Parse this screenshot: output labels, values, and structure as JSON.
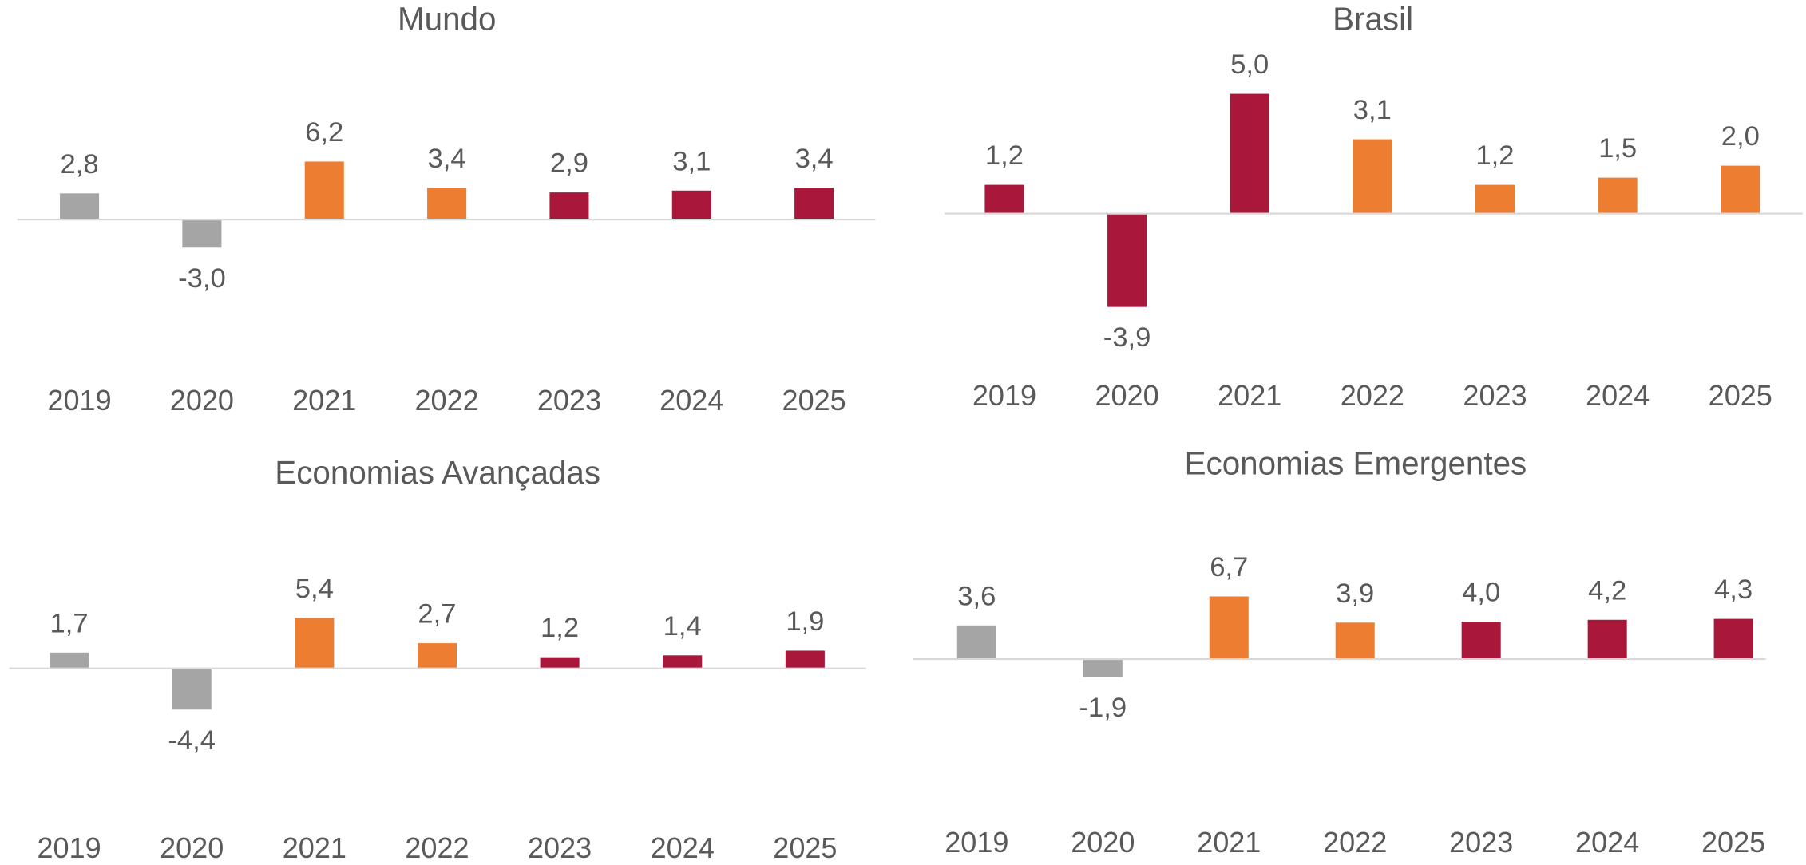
{
  "chart_data": [
    {
      "type": "bar",
      "title": "Mundo",
      "categories": [
        "2019",
        "2020",
        "2021",
        "2022",
        "2023",
        "2024",
        "2025"
      ],
      "values": [
        2.8,
        -3.0,
        6.2,
        3.4,
        2.9,
        3.1,
        3.4
      ],
      "value_labels": [
        "2,8",
        "-3,0",
        "6,2",
        "3,4",
        "2,9",
        "3,1",
        "3,4"
      ],
      "colors": [
        "#a5a5a5",
        "#a5a5a5",
        "#ed7d31",
        "#ed7d31",
        "#a9173b",
        "#a9173b",
        "#a9173b"
      ],
      "ylim": [
        -16,
        16
      ]
    },
    {
      "type": "bar",
      "title": "Brasil",
      "categories": [
        "2019",
        "2020",
        "2021",
        "2022",
        "2023",
        "2024",
        "2025"
      ],
      "values": [
        1.2,
        -3.9,
        5.0,
        3.1,
        1.2,
        1.5,
        2.0
      ],
      "value_labels": [
        "1,2",
        "-3,9",
        "5,0",
        "3,1",
        "1,2",
        "1,5",
        "2,0"
      ],
      "colors": [
        "#a9173b",
        "#a9173b",
        "#a9173b",
        "#ed7d31",
        "#ed7d31",
        "#ed7d31",
        "#ed7d31"
      ],
      "ylim": [
        -6.5,
        6
      ]
    },
    {
      "type": "bar",
      "title": "Economias Avançadas",
      "categories": [
        "2019",
        "2020",
        "2021",
        "2022",
        "2023",
        "2024",
        "2025"
      ],
      "values": [
        1.7,
        -4.4,
        5.4,
        2.7,
        1.2,
        1.4,
        1.9
      ],
      "value_labels": [
        "1,7",
        "-4,4",
        "5,4",
        "2,7",
        "1,2",
        "1,4",
        "1,9"
      ],
      "colors": [
        "#a5a5a5",
        "#a5a5a5",
        "#ed7d31",
        "#ed7d31",
        "#a9173b",
        "#a9173b",
        "#a9173b"
      ],
      "ylim": [
        -16,
        16
      ]
    },
    {
      "type": "bar",
      "title": "Economias Emergentes",
      "categories": [
        "2019",
        "2020",
        "2021",
        "2022",
        "2023",
        "2024",
        "2025"
      ],
      "values": [
        3.6,
        -1.9,
        6.7,
        3.9,
        4.0,
        4.2,
        4.3
      ],
      "value_labels": [
        "3,6",
        "-1,9",
        "6,7",
        "3,9",
        "4,0",
        "4,2",
        "4,3"
      ],
      "colors": [
        "#a5a5a5",
        "#a5a5a5",
        "#ed7d31",
        "#ed7d31",
        "#a9173b",
        "#a9173b",
        "#a9173b"
      ],
      "ylim": [
        -17,
        15
      ]
    }
  ]
}
